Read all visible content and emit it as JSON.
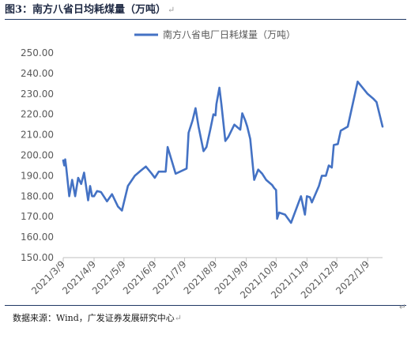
{
  "figure": {
    "label": "图3：南方八省日均耗煤量（万吨）",
    "source": "数据来源：Wind，广发证券发展研究中心",
    "return_mark": "↵"
  },
  "colors": {
    "line": "#4472c4",
    "rule": "#1f3864",
    "axis": "#bfbfbf",
    "text": "#595959"
  },
  "chart_data": {
    "type": "line",
    "title": "",
    "xlabel": "",
    "ylabel": "",
    "ylim": [
      150,
      250
    ],
    "yticks": [
      "150.00",
      "160.00",
      "170.00",
      "180.00",
      "190.00",
      "200.00",
      "210.00",
      "220.00",
      "230.00",
      "240.00",
      "250.00"
    ],
    "xticks": [
      "2021/3/9",
      "2021/4/9",
      "2021/5/9",
      "2021/6/9",
      "2021/7/9",
      "2021/8/9",
      "2021/9/9",
      "2021/10/9",
      "2021/11/9",
      "2021/12/9",
      "2022/1/9"
    ],
    "legend": "top-center",
    "grid": false,
    "series": [
      {
        "name": "南方八省电厂日耗煤量（万吨）",
        "points": [
          [
            "2021-03-09",
            197.5
          ],
          [
            "2021-03-10",
            195
          ],
          [
            "2021-03-11",
            198
          ],
          [
            "2021-03-12",
            194
          ],
          [
            "2021-03-15",
            180
          ],
          [
            "2021-03-18",
            188
          ],
          [
            "2021-03-21",
            180
          ],
          [
            "2021-03-24",
            189
          ],
          [
            "2021-03-27",
            186
          ],
          [
            "2021-03-30",
            191.5
          ],
          [
            "2021-04-03",
            178
          ],
          [
            "2021-04-05",
            185
          ],
          [
            "2021-04-07",
            180
          ],
          [
            "2021-04-09",
            180
          ],
          [
            "2021-04-12",
            182.5
          ],
          [
            "2021-04-16",
            182
          ],
          [
            "2021-04-22",
            177.5
          ],
          [
            "2021-04-27",
            181
          ],
          [
            "2021-05-03",
            175
          ],
          [
            "2021-05-07",
            173
          ],
          [
            "2021-05-13",
            185
          ],
          [
            "2021-05-20",
            190
          ],
          [
            "2021-05-26",
            192.5
          ],
          [
            "2021-05-31",
            194.5
          ],
          [
            "2021-06-06",
            191
          ],
          [
            "2021-06-09",
            189
          ],
          [
            "2021-06-13",
            192
          ],
          [
            "2021-06-20",
            192
          ],
          [
            "2021-06-22",
            204
          ],
          [
            "2021-06-30",
            191
          ],
          [
            "2021-07-11",
            193.5
          ],
          [
            "2021-07-13",
            211
          ],
          [
            "2021-07-17",
            217
          ],
          [
            "2021-07-20",
            223
          ],
          [
            "2021-07-23",
            214
          ],
          [
            "2021-07-28",
            202
          ],
          [
            "2021-07-31",
            204
          ],
          [
            "2021-08-04",
            213
          ],
          [
            "2021-08-07",
            220
          ],
          [
            "2021-08-09",
            219.5
          ],
          [
            "2021-08-10",
            225
          ],
          [
            "2021-08-13",
            233
          ],
          [
            "2021-08-15",
            225
          ],
          [
            "2021-08-19",
            207
          ],
          [
            "2021-08-22",
            209
          ],
          [
            "2021-08-28",
            215
          ],
          [
            "2021-09-03",
            212.5
          ],
          [
            "2021-09-05",
            220.5
          ],
          [
            "2021-09-08",
            217
          ],
          [
            "2021-09-10",
            214
          ],
          [
            "2021-09-13",
            208
          ],
          [
            "2021-09-17",
            188
          ],
          [
            "2021-09-21",
            193
          ],
          [
            "2021-09-25",
            191
          ],
          [
            "2021-09-29",
            188
          ],
          [
            "2021-10-05",
            185.5
          ],
          [
            "2021-10-07",
            184
          ],
          [
            "2021-10-09",
            183
          ],
          [
            "2021-10-10",
            169
          ],
          [
            "2021-10-12",
            172
          ],
          [
            "2021-10-18",
            171
          ],
          [
            "2021-10-24",
            167
          ],
          [
            "2021-11-03",
            180
          ],
          [
            "2021-11-07",
            171
          ],
          [
            "2021-11-09",
            180
          ],
          [
            "2021-11-12",
            179.5
          ],
          [
            "2021-11-14",
            177
          ],
          [
            "2021-11-21",
            185
          ],
          [
            "2021-11-24",
            190
          ],
          [
            "2021-11-28",
            190
          ],
          [
            "2021-12-01",
            195
          ],
          [
            "2021-12-04",
            194
          ],
          [
            "2021-12-06",
            205
          ],
          [
            "2021-12-10",
            205.5
          ],
          [
            "2021-12-13",
            212
          ],
          [
            "2021-12-20",
            214
          ],
          [
            "2021-12-30",
            236
          ],
          [
            "2022-01-09",
            230
          ],
          [
            "2022-01-15",
            227.5
          ],
          [
            "2022-01-18",
            226
          ],
          [
            "2022-01-24",
            214
          ]
        ]
      }
    ]
  }
}
